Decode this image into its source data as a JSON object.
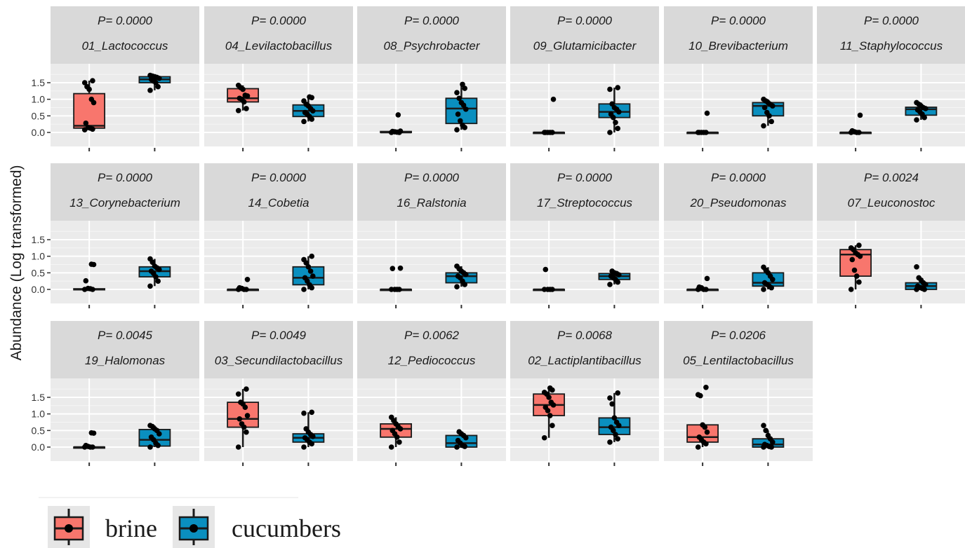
{
  "chart_data": {
    "type": "boxplot",
    "ylabel": "Abundance (Log transformed)",
    "yticks": [
      0.0,
      0.5,
      1.0,
      1.5
    ],
    "yticklabels": [
      "0.0",
      "0.5",
      "1.0",
      "1.5"
    ],
    "ylim": [
      -0.08,
      1.85
    ],
    "groups": [
      "brine",
      "cucumbers"
    ],
    "colors": {
      "brine": "#F8766D",
      "cucumbers": "#0A8FBF"
    },
    "grid": true,
    "legend": {
      "position": "bottom-left",
      "entries": [
        "brine",
        "cucumbers"
      ]
    },
    "panels": [
      {
        "title": "01_Lactococcus",
        "p": "P= 0.0000",
        "brine": {
          "q1": 0.13,
          "median": 0.2,
          "q3": 1.17,
          "wlow": 0.1,
          "whigh": 1.56,
          "points": [
            0.08,
            0.1,
            0.13,
            0.15,
            0.28,
            0.9,
            1.0,
            1.3,
            1.38,
            1.5,
            1.56
          ]
        },
        "cucumbers": {
          "q1": 1.5,
          "median": 1.6,
          "q3": 1.68,
          "wlow": 1.27,
          "whigh": 1.72,
          "points": [
            1.27,
            1.38,
            1.5,
            1.55,
            1.6,
            1.63,
            1.66,
            1.68,
            1.7,
            1.72
          ]
        }
      },
      {
        "title": "04_Levilactobacillus",
        "p": "P= 0.0000",
        "brine": {
          "q1": 0.92,
          "median": 1.03,
          "q3": 1.32,
          "wlow": 0.66,
          "whigh": 1.42,
          "points": [
            0.66,
            0.72,
            0.92,
            1.0,
            1.03,
            1.1,
            1.12,
            1.3,
            1.35,
            1.42
          ]
        },
        "cucumbers": {
          "q1": 0.48,
          "median": 0.65,
          "q3": 0.83,
          "wlow": 0.33,
          "whigh": 1.07,
          "points": [
            0.33,
            0.4,
            0.48,
            0.55,
            0.6,
            0.65,
            0.72,
            0.8,
            0.85,
            0.95,
            1.05,
            1.07
          ]
        }
      },
      {
        "title": "08_Psychrobacter",
        "p": "P= 0.0000",
        "brine": {
          "q1": 0.0,
          "median": 0.0,
          "q3": 0.03,
          "wlow": 0.0,
          "whigh": 0.04,
          "points": [
            0.0,
            0.0,
            0.01,
            0.02,
            0.03,
            0.04,
            0.53
          ]
        },
        "cucumbers": {
          "q1": 0.27,
          "median": 0.72,
          "q3": 1.03,
          "wlow": 0.08,
          "whigh": 1.45,
          "points": [
            0.08,
            0.15,
            0.22,
            0.35,
            0.55,
            0.7,
            0.82,
            0.9,
            1.03,
            1.2,
            1.33,
            1.45
          ]
        }
      },
      {
        "title": "09_Glutamicibacter",
        "p": "P= 0.0000",
        "brine": {
          "q1": 0.0,
          "median": 0.0,
          "q3": 0.0,
          "wlow": 0.0,
          "whigh": 0.0,
          "points": [
            0.0,
            0.0,
            0.0,
            0.0,
            0.0,
            1.0
          ]
        },
        "cucumbers": {
          "q1": 0.45,
          "median": 0.62,
          "q3": 0.86,
          "wlow": 0.0,
          "whigh": 1.35,
          "points": [
            0.0,
            0.12,
            0.3,
            0.45,
            0.55,
            0.62,
            0.7,
            0.75,
            0.86,
            1.3,
            1.35
          ]
        }
      },
      {
        "title": "10_Brevibacterium",
        "p": "P= 0.0000",
        "brine": {
          "q1": 0.0,
          "median": 0.0,
          "q3": 0.0,
          "wlow": 0.0,
          "whigh": 0.0,
          "points": [
            0.0,
            0.0,
            0.0,
            0.0,
            0.0,
            0.58
          ]
        },
        "cucumbers": {
          "q1": 0.5,
          "median": 0.8,
          "q3": 0.9,
          "wlow": 0.2,
          "whigh": 1.0,
          "points": [
            0.2,
            0.33,
            0.5,
            0.6,
            0.75,
            0.8,
            0.85,
            0.9,
            0.95,
            1.0
          ]
        }
      },
      {
        "title": "11_Staphylococcus",
        "p": "P= 0.0000",
        "brine": {
          "q1": 0.0,
          "median": 0.0,
          "q3": 0.0,
          "wlow": 0.0,
          "whigh": 0.02,
          "points": [
            0.0,
            0.0,
            0.0,
            0.02,
            0.05,
            0.52
          ]
        },
        "cucumbers": {
          "q1": 0.52,
          "median": 0.7,
          "q3": 0.76,
          "wlow": 0.38,
          "whigh": 0.9,
          "points": [
            0.38,
            0.45,
            0.55,
            0.62,
            0.68,
            0.72,
            0.75,
            0.8,
            0.85,
            0.9
          ]
        }
      },
      {
        "title": "13_Corynebacterium",
        "p": "P= 0.0000",
        "brine": {
          "q1": 0.0,
          "median": 0.0,
          "q3": 0.02,
          "wlow": 0.0,
          "whigh": 0.03,
          "points": [
            0.0,
            0.0,
            0.02,
            0.03,
            0.26,
            0.75,
            0.76
          ]
        },
        "cucumbers": {
          "q1": 0.38,
          "median": 0.55,
          "q3": 0.68,
          "wlow": 0.1,
          "whigh": 0.92,
          "points": [
            0.1,
            0.25,
            0.38,
            0.48,
            0.55,
            0.6,
            0.65,
            0.7,
            0.82,
            0.92
          ]
        }
      },
      {
        "title": "14_Cobetia",
        "p": "P= 0.0000",
        "brine": {
          "q1": 0.0,
          "median": 0.0,
          "q3": 0.0,
          "wlow": 0.0,
          "whigh": 0.0,
          "points": [
            0.0,
            0.0,
            0.0,
            0.03,
            0.05,
            0.3
          ]
        },
        "cucumbers": {
          "q1": 0.14,
          "median": 0.35,
          "q3": 0.68,
          "wlow": 0.0,
          "whigh": 1.0,
          "points": [
            0.0,
            0.05,
            0.14,
            0.25,
            0.35,
            0.4,
            0.55,
            0.68,
            0.8,
            0.9,
            1.0
          ]
        }
      },
      {
        "title": "16_Ralstonia",
        "p": "P= 0.0000",
        "brine": {
          "q1": 0.0,
          "median": 0.0,
          "q3": 0.0,
          "wlow": 0.0,
          "whigh": 0.0,
          "points": [
            0.0,
            0.0,
            0.0,
            0.0,
            0.63,
            0.64
          ]
        },
        "cucumbers": {
          "q1": 0.2,
          "median": 0.4,
          "q3": 0.5,
          "wlow": 0.08,
          "whigh": 0.7,
          "points": [
            0.08,
            0.15,
            0.25,
            0.35,
            0.4,
            0.45,
            0.5,
            0.55,
            0.62,
            0.7
          ]
        }
      },
      {
        "title": "17_Streptococcus",
        "p": "P= 0.0000",
        "brine": {
          "q1": 0.0,
          "median": 0.0,
          "q3": 0.0,
          "wlow": 0.0,
          "whigh": 0.0,
          "points": [
            0.0,
            0.0,
            0.0,
            0.0,
            0.6
          ]
        },
        "cucumbers": {
          "q1": 0.3,
          "median": 0.4,
          "q3": 0.48,
          "wlow": 0.15,
          "whigh": 0.55,
          "points": [
            0.15,
            0.22,
            0.3,
            0.35,
            0.4,
            0.44,
            0.48,
            0.5,
            0.55
          ]
        }
      },
      {
        "title": "20_Pseudomonas",
        "p": "P= 0.0000",
        "brine": {
          "q1": 0.0,
          "median": 0.0,
          "q3": 0.0,
          "wlow": 0.0,
          "whigh": 0.0,
          "points": [
            0.0,
            0.0,
            0.0,
            0.05,
            0.07,
            0.33
          ]
        },
        "cucumbers": {
          "q1": 0.1,
          "median": 0.2,
          "q3": 0.5,
          "wlow": 0.0,
          "whigh": 0.67,
          "points": [
            0.0,
            0.05,
            0.1,
            0.15,
            0.2,
            0.3,
            0.4,
            0.5,
            0.58,
            0.67
          ]
        }
      },
      {
        "title": "07_Leuconostoc",
        "p": "P= 0.0024",
        "brine": {
          "q1": 0.4,
          "median": 1.05,
          "q3": 1.2,
          "wlow": 0.0,
          "whigh": 1.33,
          "points": [
            0.0,
            0.22,
            0.4,
            0.58,
            0.9,
            1.0,
            1.05,
            1.1,
            1.2,
            1.25,
            1.33
          ]
        },
        "cucumbers": {
          "q1": 0.0,
          "median": 0.1,
          "q3": 0.2,
          "wlow": 0.0,
          "whigh": 0.35,
          "points": [
            0.0,
            0.0,
            0.03,
            0.06,
            0.1,
            0.15,
            0.2,
            0.28,
            0.35,
            0.68
          ]
        }
      },
      {
        "title": "19_Halomonas",
        "p": "P= 0.0045",
        "brine": {
          "q1": 0.0,
          "median": 0.0,
          "q3": 0.0,
          "wlow": 0.0,
          "whigh": 0.02,
          "points": [
            0.0,
            0.0,
            0.0,
            0.02,
            0.05,
            0.42,
            0.43
          ]
        },
        "cucumbers": {
          "q1": 0.03,
          "median": 0.22,
          "q3": 0.53,
          "wlow": 0.0,
          "whigh": 0.65,
          "points": [
            0.0,
            0.05,
            0.12,
            0.22,
            0.3,
            0.4,
            0.5,
            0.55,
            0.62,
            0.65
          ]
        }
      },
      {
        "title": "03_Secundilactobacillus",
        "p": "P= 0.0049",
        "brine": {
          "q1": 0.6,
          "median": 0.85,
          "q3": 1.35,
          "wlow": 0.0,
          "whigh": 1.75,
          "points": [
            0.0,
            0.45,
            0.6,
            0.7,
            0.85,
            0.95,
            1.2,
            1.3,
            1.35,
            1.6,
            1.75
          ]
        },
        "cucumbers": {
          "q1": 0.15,
          "median": 0.28,
          "q3": 0.4,
          "wlow": 0.0,
          "whigh": 1.05,
          "points": [
            0.0,
            0.1,
            0.15,
            0.22,
            0.28,
            0.32,
            0.38,
            0.45,
            0.55,
            1.02,
            1.05
          ]
        }
      },
      {
        "title": "12_Pediococcus",
        "p": "P= 0.0062",
        "brine": {
          "q1": 0.3,
          "median": 0.55,
          "q3": 0.7,
          "wlow": 0.0,
          "whigh": 0.9,
          "points": [
            0.0,
            0.15,
            0.3,
            0.4,
            0.5,
            0.55,
            0.62,
            0.7,
            0.8,
            0.9
          ]
        },
        "cucumbers": {
          "q1": 0.0,
          "median": 0.12,
          "q3": 0.35,
          "wlow": 0.0,
          "whigh": 0.46,
          "points": [
            0.0,
            0.02,
            0.05,
            0.12,
            0.2,
            0.28,
            0.35,
            0.4,
            0.46
          ]
        }
      },
      {
        "title": "02_Lactiplantibacillus",
        "p": "P= 0.0068",
        "brine": {
          "q1": 0.95,
          "median": 1.27,
          "q3": 1.6,
          "wlow": 0.28,
          "whigh": 1.78,
          "points": [
            0.28,
            0.65,
            0.95,
            1.1,
            1.2,
            1.27,
            1.35,
            1.5,
            1.6,
            1.65,
            1.72,
            1.78
          ]
        },
        "cucumbers": {
          "q1": 0.38,
          "median": 0.6,
          "q3": 0.88,
          "wlow": 0.15,
          "whigh": 1.63,
          "points": [
            0.15,
            0.25,
            0.38,
            0.5,
            0.6,
            0.65,
            0.75,
            0.88,
            1.3,
            1.48,
            1.63
          ]
        }
      },
      {
        "title": "05_Lentilactobacillus",
        "p": "P= 0.0206",
        "brine": {
          "q1": 0.15,
          "median": 0.3,
          "q3": 0.67,
          "wlow": 0.0,
          "whigh": 0.67,
          "points": [
            0.0,
            0.1,
            0.15,
            0.22,
            0.3,
            0.45,
            0.6,
            0.67,
            1.55,
            1.58,
            1.8
          ]
        },
        "cucumbers": {
          "q1": 0.0,
          "median": 0.08,
          "q3": 0.25,
          "wlow": 0.0,
          "whigh": 0.5,
          "points": [
            0.0,
            0.0,
            0.02,
            0.05,
            0.08,
            0.15,
            0.25,
            0.35,
            0.5,
            0.65
          ]
        }
      }
    ]
  }
}
